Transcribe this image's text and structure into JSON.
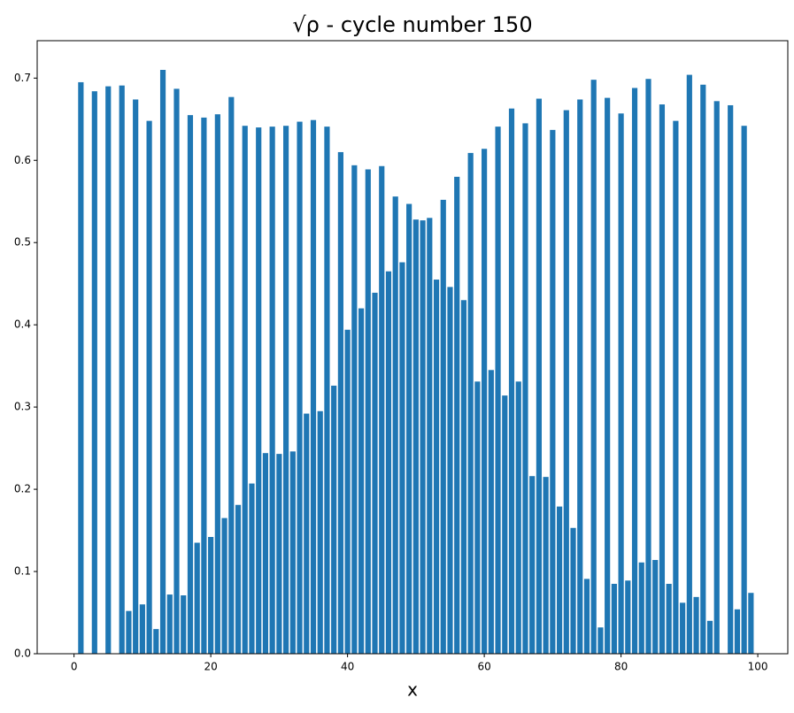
{
  "chart_data": {
    "type": "bar",
    "title": "√ρ - cycle number 150",
    "x_label": "x",
    "x": [
      0,
      1,
      2,
      3,
      4,
      5,
      6,
      7,
      8,
      9,
      10,
      11,
      12,
      13,
      14,
      15,
      16,
      17,
      18,
      19,
      20,
      21,
      22,
      23,
      24,
      25,
      26,
      27,
      28,
      29,
      30,
      31,
      32,
      33,
      34,
      35,
      36,
      37,
      38,
      39,
      40,
      41,
      42,
      43,
      44,
      45,
      46,
      47,
      48,
      49,
      50,
      51,
      52,
      53,
      54,
      55,
      56,
      57,
      58,
      59,
      60,
      61,
      62,
      63,
      64,
      65,
      66,
      67,
      68,
      69,
      70,
      71,
      72,
      73,
      74,
      75,
      76,
      77,
      78,
      79,
      80,
      81,
      82,
      83,
      84,
      85,
      86,
      87,
      88,
      89,
      90,
      91,
      92,
      93,
      94,
      95,
      96,
      97,
      98,
      99
    ],
    "values": [
      0,
      0.695,
      0,
      0.684,
      0,
      0.69,
      0,
      0.691,
      0.052,
      0.674,
      0.06,
      0.648,
      0.03,
      0.71,
      0.072,
      0.687,
      0.071,
      0.655,
      0.135,
      0.652,
      0.142,
      0.656,
      0.165,
      0.677,
      0.181,
      0.642,
      0.207,
      0.64,
      0.244,
      0.641,
      0.243,
      0.642,
      0.246,
      0.647,
      0.292,
      0.649,
      0.295,
      0.641,
      0.326,
      0.61,
      0.394,
      0.594,
      0.42,
      0.589,
      0.439,
      0.593,
      0.465,
      0.556,
      0.476,
      0.547,
      0.528,
      0.527,
      0.53,
      0.455,
      0.552,
      0.446,
      0.58,
      0.43,
      0.609,
      0.331,
      0.614,
      0.345,
      0.641,
      0.314,
      0.663,
      0.331,
      0.645,
      0.216,
      0.675,
      0.215,
      0.637,
      0.179,
      0.661,
      0.153,
      0.674,
      0.091,
      0.698,
      0.032,
      0.676,
      0.085,
      0.657,
      0.089,
      0.688,
      0.111,
      0.699,
      0.114,
      0.668,
      0.085,
      0.648,
      0.062,
      0.704,
      0.069,
      0.692,
      0.04,
      0.672,
      0,
      0.667,
      0.054,
      0.642,
      0.074
    ],
    "color": "#1f77b4",
    "xlim": [
      -5.39,
      104.39
    ],
    "xticks": [
      0,
      20,
      40,
      60,
      80,
      100
    ],
    "ylim": [
      0,
      0.7455
    ],
    "yticks": [
      {
        "value": 0,
        "label": "0.0"
      },
      0.1,
      0.2,
      0.3,
      0.4,
      0.5,
      0.6,
      0.7
    ]
  }
}
